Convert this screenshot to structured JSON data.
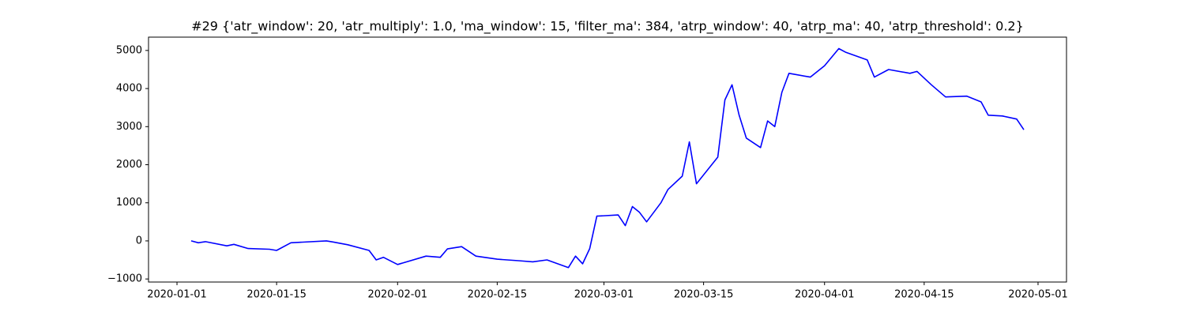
{
  "chart_data": {
    "type": "line",
    "title": "#29 {'atr_window': 20, 'atr_multiply': 1.0, 'ma_window': 15, 'filter_ma': 384, 'atrp_window': 40, 'atrp_ma': 40, 'atrp_threshold': 0.2}",
    "color": "#0000ff",
    "x": [
      "2020-01-03",
      "2020-01-04",
      "2020-01-05",
      "2020-01-08",
      "2020-01-09",
      "2020-01-11",
      "2020-01-14",
      "2020-01-15",
      "2020-01-17",
      "2020-01-22",
      "2020-01-23",
      "2020-01-25",
      "2020-01-28",
      "2020-01-29",
      "2020-01-30",
      "2020-02-01",
      "2020-02-05",
      "2020-02-07",
      "2020-02-08",
      "2020-02-10",
      "2020-02-12",
      "2020-02-15",
      "2020-02-18",
      "2020-02-20",
      "2020-02-22",
      "2020-02-25",
      "2020-02-26",
      "2020-02-27",
      "2020-02-28",
      "2020-02-29",
      "2020-03-03",
      "2020-03-04",
      "2020-03-05",
      "2020-03-06",
      "2020-03-07",
      "2020-03-09",
      "2020-03-10",
      "2020-03-12",
      "2020-03-13",
      "2020-03-14",
      "2020-03-17",
      "2020-03-18",
      "2020-03-19",
      "2020-03-20",
      "2020-03-21",
      "2020-03-23",
      "2020-03-24",
      "2020-03-25",
      "2020-03-26",
      "2020-03-27",
      "2020-03-30",
      "2020-04-01",
      "2020-04-03",
      "2020-04-04",
      "2020-04-07",
      "2020-04-08",
      "2020-04-10",
      "2020-04-13",
      "2020-04-14",
      "2020-04-16",
      "2020-04-18",
      "2020-04-21",
      "2020-04-23",
      "2020-04-24",
      "2020-04-26",
      "2020-04-28",
      "2020-04-29"
    ],
    "values": [
      0,
      -50,
      -20,
      -130,
      -90,
      -200,
      -220,
      -250,
      -50,
      0,
      -30,
      -100,
      -250,
      -500,
      -430,
      -620,
      -400,
      -430,
      -210,
      -150,
      -400,
      -480,
      -520,
      -550,
      -500,
      -700,
      -400,
      -600,
      -200,
      650,
      680,
      400,
      900,
      750,
      500,
      1000,
      1350,
      1700,
      2600,
      1500,
      2200,
      3700,
      4100,
      3300,
      2700,
      2450,
      3150,
      3000,
      3900,
      4400,
      4300,
      4600,
      5050,
      4950,
      4750,
      4300,
      4500,
      4400,
      4450,
      4100,
      3780,
      3800,
      3650,
      3300,
      3280,
      3200,
      2920
    ],
    "xlim": [
      "2019-12-28",
      "2020-05-05"
    ],
    "xticks": [
      "2020-01-01",
      "2020-01-15",
      "2020-02-01",
      "2020-02-15",
      "2020-03-01",
      "2020-03-15",
      "2020-04-01",
      "2020-04-15",
      "2020-05-01"
    ],
    "ylim": [
      -1080,
      5350
    ],
    "yticks": [
      {
        "value": -1000,
        "label": "−1000"
      },
      0,
      1000,
      2000,
      3000,
      4000,
      5000
    ]
  }
}
